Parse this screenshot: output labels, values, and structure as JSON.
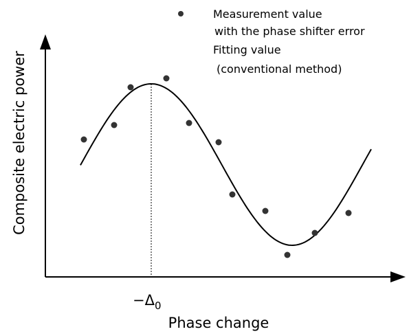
{
  "legend": {
    "measurement": [
      "Measurement value",
      "with the phase shifter error"
    ],
    "fitting": [
      "Fitting value",
      "(conventional method)"
    ]
  },
  "axes": {
    "y_label": "Composite electric power",
    "x_label": "Phase change",
    "marker": {
      "symbol": "−Δ",
      "subscript": "0"
    }
  }
}
